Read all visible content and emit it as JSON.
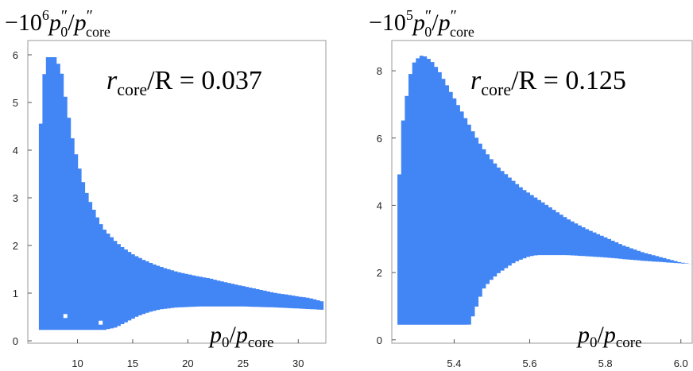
{
  "chart_data": [
    {
      "type": "area",
      "ylabel_tex": "-10^6 p0''/p''core",
      "ylabel_parts": {
        "minus": "−10",
        "exp": "6",
        "p": "p",
        "prime": "″",
        "sub0": "0",
        "slash": "/",
        "pc": "p",
        "primec": "″",
        "subcore": "core"
      },
      "annotation": {
        "r": "r",
        "sub": "core",
        "rest": "/R = 0.037"
      },
      "xlabel_parts": {
        "p": "p",
        "sub0": "0",
        "slash": "/",
        "pc": "p",
        "subcore": "core"
      },
      "xlim": [
        5.5,
        32.5
      ],
      "ylim": [
        -0.05,
        6.3
      ],
      "xticks": [
        "10",
        "15",
        "20",
        "25",
        "30"
      ],
      "xtick_values": [
        10,
        15,
        20,
        25,
        30
      ],
      "yticks": [
        "0",
        "1",
        "2",
        "3",
        "4",
        "5",
        "6"
      ],
      "ytick_values": [
        0,
        1,
        2,
        3,
        4,
        5,
        6
      ],
      "color": "#4285f4",
      "upper": [
        [
          6.5,
          3.92
        ],
        [
          6.9,
          5.5
        ],
        [
          7.3,
          5.95
        ],
        [
          8.0,
          5.95
        ],
        [
          8.3,
          5.8
        ],
        [
          8.6,
          5.6
        ],
        [
          9.0,
          5.0
        ],
        [
          9.3,
          4.6
        ],
        [
          9.6,
          4.2
        ],
        [
          10.0,
          3.8
        ],
        [
          10.5,
          3.35
        ],
        [
          11.0,
          3.0
        ],
        [
          11.5,
          2.75
        ],
        [
          12.0,
          2.5
        ],
        [
          12.5,
          2.32
        ],
        [
          13.0,
          2.2
        ],
        [
          13.5,
          2.08
        ],
        [
          14.0,
          1.98
        ],
        [
          15.0,
          1.82
        ],
        [
          16.0,
          1.7
        ],
        [
          17.0,
          1.6
        ],
        [
          18.0,
          1.52
        ],
        [
          19.0,
          1.45
        ],
        [
          20.0,
          1.4
        ],
        [
          21.0,
          1.35
        ],
        [
          22.0,
          1.31
        ],
        [
          23.0,
          1.25
        ],
        [
          24.0,
          1.2
        ],
        [
          25.0,
          1.15
        ],
        [
          26.0,
          1.1
        ],
        [
          27.0,
          1.05
        ],
        [
          28.0,
          1.0
        ],
        [
          29.0,
          0.97
        ],
        [
          30.0,
          0.93
        ],
        [
          31.0,
          0.9
        ],
        [
          32.3,
          0.82
        ]
      ],
      "lower": [
        [
          6.5,
          0.23
        ],
        [
          12.5,
          0.23
        ],
        [
          13.5,
          0.28
        ],
        [
          14.5,
          0.4
        ],
        [
          15.5,
          0.52
        ],
        [
          16.5,
          0.6
        ],
        [
          17.5,
          0.66
        ],
        [
          19.0,
          0.7
        ],
        [
          21.0,
          0.72
        ],
        [
          25.0,
          0.72
        ],
        [
          28.0,
          0.7
        ],
        [
          32.3,
          0.65
        ]
      ],
      "holes": [
        [
          8.9,
          0.52
        ],
        [
          12.1,
          0.38
        ]
      ]
    },
    {
      "type": "area",
      "ylabel_tex": "-10^5 p0''/p''core",
      "ylabel_parts": {
        "minus": "−10",
        "exp": "5",
        "p": "p",
        "prime": "″",
        "sub0": "0",
        "slash": "/",
        "pc": "p",
        "primec": "″",
        "subcore": "core"
      },
      "annotation": {
        "r": "r",
        "sub": "core",
        "rest": "/R = 0.125"
      },
      "xlabel_parts": {
        "p": "p",
        "sub0": "0",
        "slash": "/",
        "pc": "p",
        "subcore": "core"
      },
      "xlim": [
        5.235,
        6.03
      ],
      "ylim": [
        -0.1,
        8.9
      ],
      "xticks": [
        "5.4",
        "5.6",
        "5.8",
        "6.0"
      ],
      "xtick_values": [
        5.4,
        5.6,
        5.8,
        6.0
      ],
      "yticks": [
        "0",
        "2",
        "4",
        "6",
        "8"
      ],
      "ytick_values": [
        0,
        2,
        4,
        6,
        8
      ],
      "color": "#4285f4",
      "upper": [
        [
          5.25,
          3.7
        ],
        [
          5.26,
          6.2
        ],
        [
          5.27,
          6.9
        ],
        [
          5.28,
          7.7
        ],
        [
          5.29,
          8.2
        ],
        [
          5.31,
          8.45
        ],
        [
          5.32,
          8.45
        ],
        [
          5.34,
          8.3
        ],
        [
          5.36,
          8.0
        ],
        [
          5.38,
          7.6
        ],
        [
          5.4,
          7.2
        ],
        [
          5.42,
          6.8
        ],
        [
          5.44,
          6.4
        ],
        [
          5.46,
          6.0
        ],
        [
          5.48,
          5.65
        ],
        [
          5.5,
          5.35
        ],
        [
          5.52,
          5.1
        ],
        [
          5.55,
          4.8
        ],
        [
          5.58,
          4.5
        ],
        [
          5.62,
          4.2
        ],
        [
          5.66,
          3.9
        ],
        [
          5.7,
          3.6
        ],
        [
          5.75,
          3.3
        ],
        [
          5.8,
          3.05
        ],
        [
          5.85,
          2.8
        ],
        [
          5.9,
          2.6
        ],
        [
          5.95,
          2.45
        ],
        [
          6.0,
          2.3
        ],
        [
          6.03,
          2.25
        ]
      ],
      "lower": [
        [
          5.25,
          0.45
        ],
        [
          5.44,
          0.45
        ],
        [
          5.45,
          0.7
        ],
        [
          5.46,
          1.0
        ],
        [
          5.47,
          1.3
        ],
        [
          5.48,
          1.55
        ],
        [
          5.5,
          1.8
        ],
        [
          5.52,
          2.0
        ],
        [
          5.54,
          2.15
        ],
        [
          5.56,
          2.3
        ],
        [
          5.58,
          2.4
        ],
        [
          5.6,
          2.48
        ],
        [
          5.62,
          2.52
        ],
        [
          5.7,
          2.52
        ],
        [
          5.8,
          2.45
        ],
        [
          5.9,
          2.35
        ],
        [
          6.03,
          2.25
        ]
      ],
      "holes": []
    }
  ]
}
